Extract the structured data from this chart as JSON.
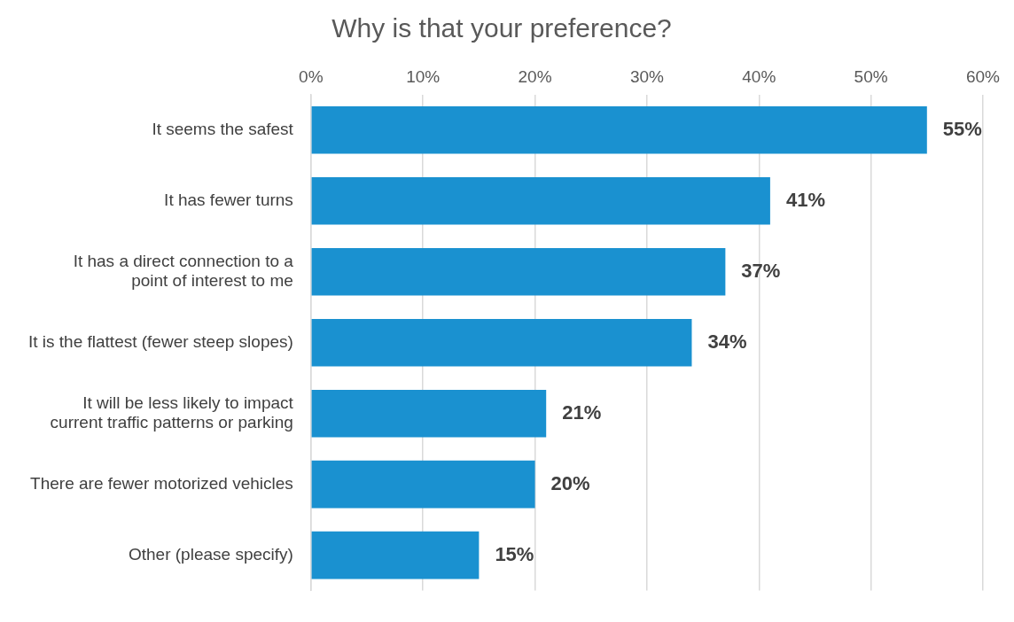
{
  "chart_data": {
    "type": "bar",
    "orientation": "horizontal",
    "title": "Why is that your preference?",
    "categories": [
      "It seems the safest",
      "It has fewer turns",
      "It has a direct connection to a point of interest to me",
      "It is the flattest (fewer steep slopes)",
      "It will be less likely to impact current traffic patterns or parking",
      "There are fewer motorized vehicles",
      "Other (please specify)"
    ],
    "values": [
      55,
      41,
      37,
      34,
      21,
      20,
      15
    ],
    "color": "#1a91d0",
    "xlim": [
      0,
      60
    ],
    "xticks": [
      {
        "value": 0,
        "label": "0%"
      },
      {
        "value": 10,
        "label": "10%"
      },
      {
        "value": 20,
        "label": "20%"
      },
      {
        "value": 30,
        "label": "30%"
      },
      {
        "value": 40,
        "label": "40%"
      },
      {
        "value": 50,
        "label": "50%"
      },
      {
        "value": 60,
        "label": "60%"
      }
    ],
    "value_labels": [
      "55%",
      "41%",
      "37%",
      "34%",
      "21%",
      "20%",
      "15%"
    ],
    "grid": "x",
    "legend": false
  }
}
